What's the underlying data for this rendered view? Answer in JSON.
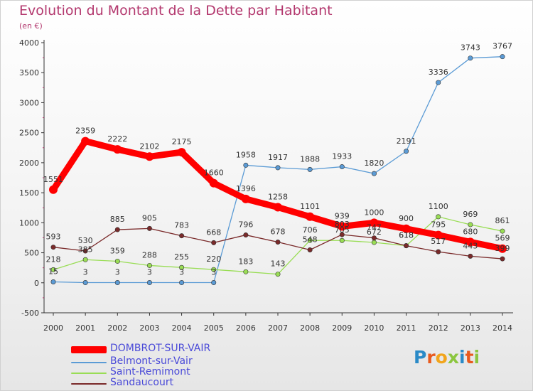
{
  "title": "Evolution du Montant de la Dette par Habitant",
  "subtitle": "(en €)",
  "logo": {
    "text": "Proxiti",
    "letter_colors": [
      "#2a8ac7",
      "#e85a1e",
      "#f2a51c",
      "#8cc63f",
      "#2a8ac7",
      "#e85a1e",
      "#8cc63f"
    ]
  },
  "chart_data": {
    "type": "line",
    "x": [
      2000,
      2001,
      2002,
      2003,
      2004,
      2005,
      2006,
      2007,
      2008,
      2009,
      2010,
      2011,
      2012,
      2013,
      2014
    ],
    "ylim": [
      -500,
      4000
    ],
    "yticks": [
      -500,
      0,
      500,
      1000,
      1500,
      2000,
      2500,
      3000,
      3500,
      4000
    ],
    "grid": false,
    "legend_position": "bottom-left",
    "series": [
      {
        "name": "DOMBROT-SUR-VAIR",
        "color": "#ff0000",
        "values": [
          1551,
          2359,
          2222,
          2102,
          2175,
          1660,
          1396,
          1258,
          1101,
          939,
          1000,
          900,
          795,
          680,
          569
        ],
        "labels": [
          "1551",
          "2359",
          "2222",
          "2102",
          "2175",
          "1660",
          "1396",
          "1258",
          "1101",
          "939",
          "1000",
          "900",
          "795",
          "680",
          "569"
        ]
      },
      {
        "name": "Belmont-sur-Vair",
        "color": "#5b9bd5",
        "values": [
          15,
          3,
          3,
          3,
          3,
          3,
          1958,
          1917,
          1888,
          1933,
          1820,
          2191,
          3336,
          3743,
          3767
        ],
        "labels": [
          "15",
          "3",
          "3",
          "3",
          "3",
          "3",
          "1958",
          "1917",
          "1888",
          "1933",
          "1820",
          "2191",
          "3336",
          "3743",
          "3767"
        ]
      },
      {
        "name": "Saint-Remimont",
        "color": "#99dd55",
        "values": [
          218,
          385,
          359,
          288,
          255,
          220,
          183,
          143,
          706,
          705,
          672,
          618,
          1100,
          969,
          861
        ],
        "labels": [
          "218",
          "385",
          "359",
          "288",
          "255",
          "220",
          "183",
          "143",
          "706",
          "705",
          "672",
          "618",
          "1100",
          "969",
          "861"
        ]
      },
      {
        "name": "Sandaucourt",
        "color": "#7a2a2a",
        "values": [
          593,
          530,
          885,
          905,
          783,
          668,
          796,
          678,
          548,
          803,
          747,
          618,
          517,
          443,
          399
        ],
        "labels": [
          "593",
          "530",
          "885",
          "905",
          "783",
          "668",
          "796",
          "678",
          "548",
          "803",
          "747",
          "618",
          "517",
          "443",
          "399"
        ]
      }
    ]
  }
}
